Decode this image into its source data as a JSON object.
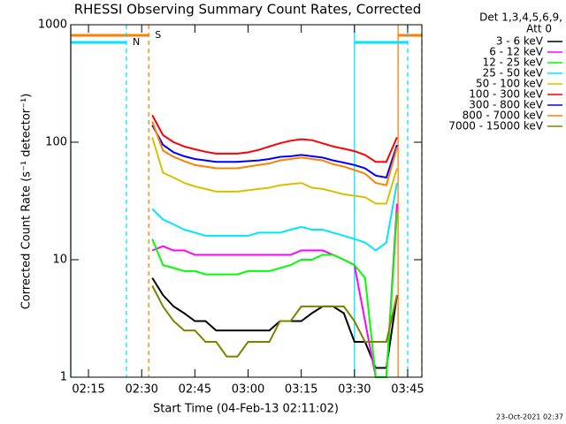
{
  "chart_data": {
    "type": "line",
    "title": "RHESSI Observing Summary Count Rates, Corrected",
    "x_label": "Start Time (04-Feb-13 02:11:02)",
    "y_label": "Corrected Count Rate (s⁻¹ detector⁻¹)",
    "legend_title": [
      "Det 1,3,4,5,6,9,",
      "Att 0"
    ],
    "timestamp": "23-Oct-2021 02:37",
    "log_y": true,
    "xlim": [
      130,
      229
    ],
    "xticks": [
      {
        "value": 135,
        "label": "02:15"
      },
      {
        "value": 150,
        "label": "02:30"
      },
      {
        "value": 165,
        "label": "02:45"
      },
      {
        "value": 180,
        "label": "03:00"
      },
      {
        "value": 195,
        "label": "03:15"
      },
      {
        "value": 210,
        "label": "03:30"
      },
      {
        "value": 225,
        "label": "03:45"
      }
    ],
    "ylim": [
      1,
      1000
    ],
    "yticks": [
      1,
      10,
      100,
      1000
    ],
    "flags": [
      {
        "label": "S",
        "color": "#ff8000",
        "spans": [
          [
            130,
            152
          ],
          [
            222.3,
            229
          ]
        ]
      },
      {
        "label": "N",
        "color": "#00e5ff",
        "spans": [
          [
            130,
            145.7
          ],
          [
            210,
            225
          ]
        ]
      }
    ],
    "x": [
      153,
      156,
      159,
      162,
      165,
      168,
      171,
      174,
      177,
      180,
      183,
      186,
      189,
      192,
      195,
      198,
      201,
      204,
      207,
      210,
      213,
      216,
      219,
      222
    ],
    "series": [
      {
        "name": "3 - 6 keV",
        "color": "#000000",
        "values": [
          7,
          5,
          4,
          3.5,
          3,
          3,
          2.5,
          2.5,
          2.5,
          2.5,
          2.5,
          2.5,
          3,
          3,
          3,
          3.5,
          4,
          4,
          3.5,
          2,
          2,
          1.2,
          1.2,
          5
        ]
      },
      {
        "name": "6 - 12 keV",
        "color": "#ff00ff",
        "values": [
          12,
          13,
          12,
          12,
          11,
          11,
          11,
          11,
          11,
          11,
          11,
          11,
          11,
          11,
          12,
          12,
          12,
          11,
          10,
          9,
          3,
          1,
          1,
          30
        ]
      },
      {
        "name": "12 - 25 keV",
        "color": "#00ff00",
        "values": [
          15,
          9,
          8.5,
          8,
          8,
          7.5,
          7.5,
          7.5,
          7.5,
          8,
          8,
          8,
          8.5,
          9,
          10,
          10,
          11,
          11,
          10,
          9,
          7,
          1,
          1,
          25
        ]
      },
      {
        "name": "25 - 50 keV",
        "color": "#00e5ff",
        "values": [
          27,
          22,
          20,
          18,
          17,
          16,
          16,
          16,
          16,
          16,
          17,
          17,
          17,
          18,
          19,
          18,
          18,
          17,
          16,
          15,
          14,
          12,
          14,
          45
        ]
      },
      {
        "name": "50 - 100 keV",
        "color": "#d8c000",
        "values": [
          110,
          55,
          50,
          45,
          42,
          40,
          38,
          38,
          38,
          39,
          40,
          41,
          43,
          44,
          45,
          41,
          40,
          38,
          36,
          35,
          34,
          30,
          30,
          60
        ]
      },
      {
        "name": "100 - 300 keV",
        "color": "#ff0000",
        "values": [
          170,
          115,
          100,
          92,
          87,
          83,
          80,
          80,
          80,
          82,
          86,
          92,
          98,
          103,
          106,
          104,
          98,
          92,
          88,
          84,
          78,
          68,
          68,
          110
        ]
      },
      {
        "name": "300 - 800 keV",
        "color": "#0000ff",
        "values": [
          140,
          95,
          82,
          76,
          72,
          70,
          68,
          68,
          68,
          69,
          70,
          72,
          75,
          76,
          78,
          76,
          74,
          70,
          67,
          64,
          60,
          52,
          50,
          95
        ]
      },
      {
        "name": "800 - 7000 keV",
        "color": "#ff8000",
        "values": [
          150,
          85,
          75,
          69,
          64,
          62,
          60,
          60,
          60,
          62,
          64,
          66,
          70,
          72,
          74,
          72,
          70,
          65,
          62,
          58,
          54,
          45,
          43,
          90
        ]
      },
      {
        "name": "7000 - 15000 keV",
        "color": "#808000",
        "values": [
          6,
          4,
          3,
          2.5,
          2.5,
          2,
          2,
          1.5,
          1.5,
          2,
          2,
          2,
          3,
          3,
          4,
          4,
          4,
          4,
          4,
          3,
          2,
          2,
          2,
          5
        ]
      }
    ]
  }
}
